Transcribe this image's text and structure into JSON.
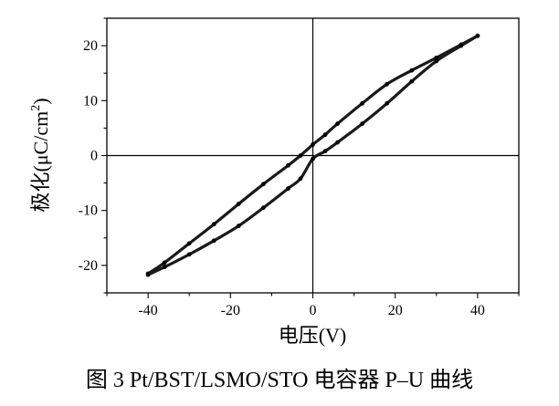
{
  "chart_data": {
    "type": "line",
    "title": "",
    "xlabel": "电压(V)",
    "ylabel": "极化(μC/cm²)",
    "ylabel_parts": {
      "main": "极化(μC/cm",
      "sup": "2",
      "close": ")"
    },
    "xlim": [
      -50,
      50
    ],
    "ylim": [
      -25,
      25
    ],
    "xticks": [
      -40,
      -20,
      0,
      20,
      40
    ],
    "yticks": [
      -20,
      -10,
      0,
      10,
      20
    ],
    "grid": false,
    "zero_lines": true,
    "series": [
      {
        "branch": "upper",
        "x": [
          -40,
          -36,
          -30,
          -24,
          -18,
          -12,
          -6,
          -3,
          0,
          3,
          6,
          12,
          18,
          24,
          30,
          36,
          40
        ],
        "y": [
          -21.5,
          -19.5,
          -16.0,
          -12.5,
          -8.8,
          -5.2,
          -1.8,
          0.0,
          2.0,
          3.8,
          5.8,
          9.5,
          13.0,
          15.5,
          17.8,
          20.2,
          21.8
        ]
      },
      {
        "branch": "lower",
        "x": [
          40,
          36,
          30,
          24,
          18,
          12,
          6,
          3,
          0,
          -3,
          -6,
          -12,
          -18,
          -24,
          -30,
          -36,
          -40
        ],
        "y": [
          21.8,
          20.0,
          17.2,
          13.5,
          9.5,
          5.8,
          2.4,
          0.8,
          -0.6,
          -4.2,
          -6.0,
          -9.5,
          -12.8,
          -15.5,
          -18.0,
          -20.3,
          -21.7
        ]
      }
    ],
    "caption": "图 3 Pt/BST/LSMO/STO 电容器 P–U 曲线"
  }
}
